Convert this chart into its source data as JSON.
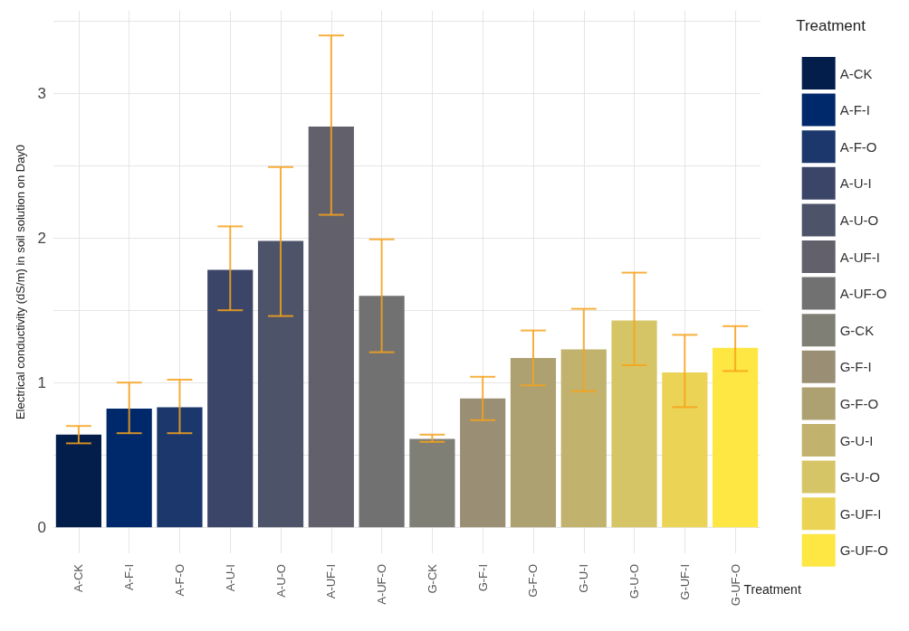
{
  "chart_data": {
    "type": "bar",
    "xlabel": "Treatment",
    "ylabel": "Electrical conductivity (dS/m) in soil solution on Day0",
    "legend_title": "Treatment",
    "categories": [
      "A-CK",
      "A-F-I",
      "A-F-O",
      "A-U-I",
      "A-U-O",
      "A-UF-I",
      "A-UF-O",
      "G-CK",
      "G-F-I",
      "G-F-O",
      "G-U-I",
      "G-U-O",
      "G-UF-I",
      "G-UF-O"
    ],
    "series": [
      {
        "name": "A-CK",
        "color": "#041e4c",
        "values": [
          0.64,
          null,
          null,
          null,
          null,
          null,
          null,
          null,
          null,
          null,
          null,
          null,
          null,
          null
        ],
        "errors": [
          [
            0.58,
            0.7
          ],
          null,
          null,
          null,
          null,
          null,
          null,
          null,
          null,
          null,
          null,
          null,
          null,
          null
        ]
      },
      {
        "name": "A-F-I",
        "color": "#00296b",
        "values": [
          null,
          0.82,
          null,
          null,
          null,
          null,
          null,
          null,
          null,
          null,
          null,
          null,
          null,
          null
        ],
        "errors": [
          null,
          [
            0.65,
            1.0
          ],
          null,
          null,
          null,
          null,
          null,
          null,
          null,
          null,
          null,
          null,
          null,
          null
        ]
      },
      {
        "name": "A-F-O",
        "color": "#1c376b",
        "values": [
          null,
          null,
          0.83,
          null,
          null,
          null,
          null,
          null,
          null,
          null,
          null,
          null,
          null,
          null
        ],
        "errors": [
          null,
          null,
          [
            0.65,
            1.02
          ],
          null,
          null,
          null,
          null,
          null,
          null,
          null,
          null,
          null,
          null,
          null
        ]
      },
      {
        "name": "A-U-I",
        "color": "#3b4567",
        "values": [
          null,
          null,
          null,
          1.78,
          null,
          null,
          null,
          null,
          null,
          null,
          null,
          null,
          null,
          null
        ],
        "errors": [
          null,
          null,
          null,
          [
            1.5,
            2.08
          ],
          null,
          null,
          null,
          null,
          null,
          null,
          null,
          null,
          null,
          null
        ]
      },
      {
        "name": "A-U-O",
        "color": "#4d5368",
        "values": [
          null,
          null,
          null,
          null,
          1.98,
          null,
          null,
          null,
          null,
          null,
          null,
          null,
          null,
          null
        ],
        "errors": [
          null,
          null,
          null,
          null,
          [
            1.46,
            2.49
          ],
          null,
          null,
          null,
          null,
          null,
          null,
          null,
          null,
          null
        ]
      },
      {
        "name": "A-UF-I",
        "color": "#62616b",
        "values": [
          null,
          null,
          null,
          null,
          null,
          2.77,
          null,
          null,
          null,
          null,
          null,
          null,
          null,
          null
        ],
        "errors": [
          null,
          null,
          null,
          null,
          null,
          [
            2.16,
            3.4
          ],
          null,
          null,
          null,
          null,
          null,
          null,
          null,
          null
        ]
      },
      {
        "name": "A-UF-O",
        "color": "#717171",
        "values": [
          null,
          null,
          null,
          null,
          null,
          null,
          1.6,
          null,
          null,
          null,
          null,
          null,
          null,
          null
        ],
        "errors": [
          null,
          null,
          null,
          null,
          null,
          null,
          [
            1.21,
            1.99
          ],
          null,
          null,
          null,
          null,
          null,
          null,
          null
        ]
      },
      {
        "name": "G-CK",
        "color": "#807f75",
        "values": [
          null,
          null,
          null,
          null,
          null,
          null,
          null,
          0.61,
          null,
          null,
          null,
          null,
          null,
          null
        ],
        "errors": [
          null,
          null,
          null,
          null,
          null,
          null,
          null,
          [
            0.59,
            0.64
          ],
          null,
          null,
          null,
          null,
          null,
          null
        ]
      },
      {
        "name": "G-F-I",
        "color": "#9a8e75",
        "values": [
          null,
          null,
          null,
          null,
          null,
          null,
          null,
          null,
          0.89,
          null,
          null,
          null,
          null,
          null
        ],
        "errors": [
          null,
          null,
          null,
          null,
          null,
          null,
          null,
          null,
          [
            0.74,
            1.04
          ],
          null,
          null,
          null,
          null,
          null
        ]
      },
      {
        "name": "G-F-O",
        "color": "#ada172",
        "values": [
          null,
          null,
          null,
          null,
          null,
          null,
          null,
          null,
          null,
          1.17,
          null,
          null,
          null,
          null
        ],
        "errors": [
          null,
          null,
          null,
          null,
          null,
          null,
          null,
          null,
          null,
          [
            0.98,
            1.36
          ],
          null,
          null,
          null,
          null
        ]
      },
      {
        "name": "G-U-I",
        "color": "#c1b26d",
        "values": [
          null,
          null,
          null,
          null,
          null,
          null,
          null,
          null,
          null,
          null,
          1.23,
          null,
          null,
          null
        ],
        "errors": [
          null,
          null,
          null,
          null,
          null,
          null,
          null,
          null,
          null,
          null,
          [
            0.94,
            1.51
          ],
          null,
          null,
          null
        ]
      },
      {
        "name": "G-U-O",
        "color": "#d6c566",
        "values": [
          null,
          null,
          null,
          null,
          null,
          null,
          null,
          null,
          null,
          null,
          null,
          1.43,
          null,
          null
        ],
        "errors": [
          null,
          null,
          null,
          null,
          null,
          null,
          null,
          null,
          null,
          null,
          null,
          [
            1.12,
            1.76
          ],
          null,
          null
        ]
      },
      {
        "name": "G-UF-I",
        "color": "#ebd455",
        "values": [
          null,
          null,
          null,
          null,
          null,
          null,
          null,
          null,
          null,
          null,
          null,
          null,
          1.07,
          null
        ],
        "errors": [
          null,
          null,
          null,
          null,
          null,
          null,
          null,
          null,
          null,
          null,
          null,
          null,
          [
            0.83,
            1.33
          ],
          null
        ]
      },
      {
        "name": "G-UF-O",
        "color": "#fee643",
        "values": [
          null,
          null,
          null,
          null,
          null,
          null,
          null,
          null,
          null,
          null,
          null,
          null,
          null,
          1.24
        ],
        "errors": [
          null,
          null,
          null,
          null,
          null,
          null,
          null,
          null,
          null,
          null,
          null,
          null,
          null,
          [
            1.08,
            1.39
          ]
        ]
      }
    ],
    "stacked": true,
    "ylim": [
      -0.18,
      3.57
    ],
    "yticks": [
      0,
      {
        "value": 0.5,
        "label": null
      },
      1,
      {
        "value": 1.5,
        "label": null
      },
      2,
      {
        "value": 2.5,
        "label": null
      },
      3,
      {
        "value": 3.5,
        "label": null
      }
    ],
    "grid": true,
    "legend": "right"
  }
}
